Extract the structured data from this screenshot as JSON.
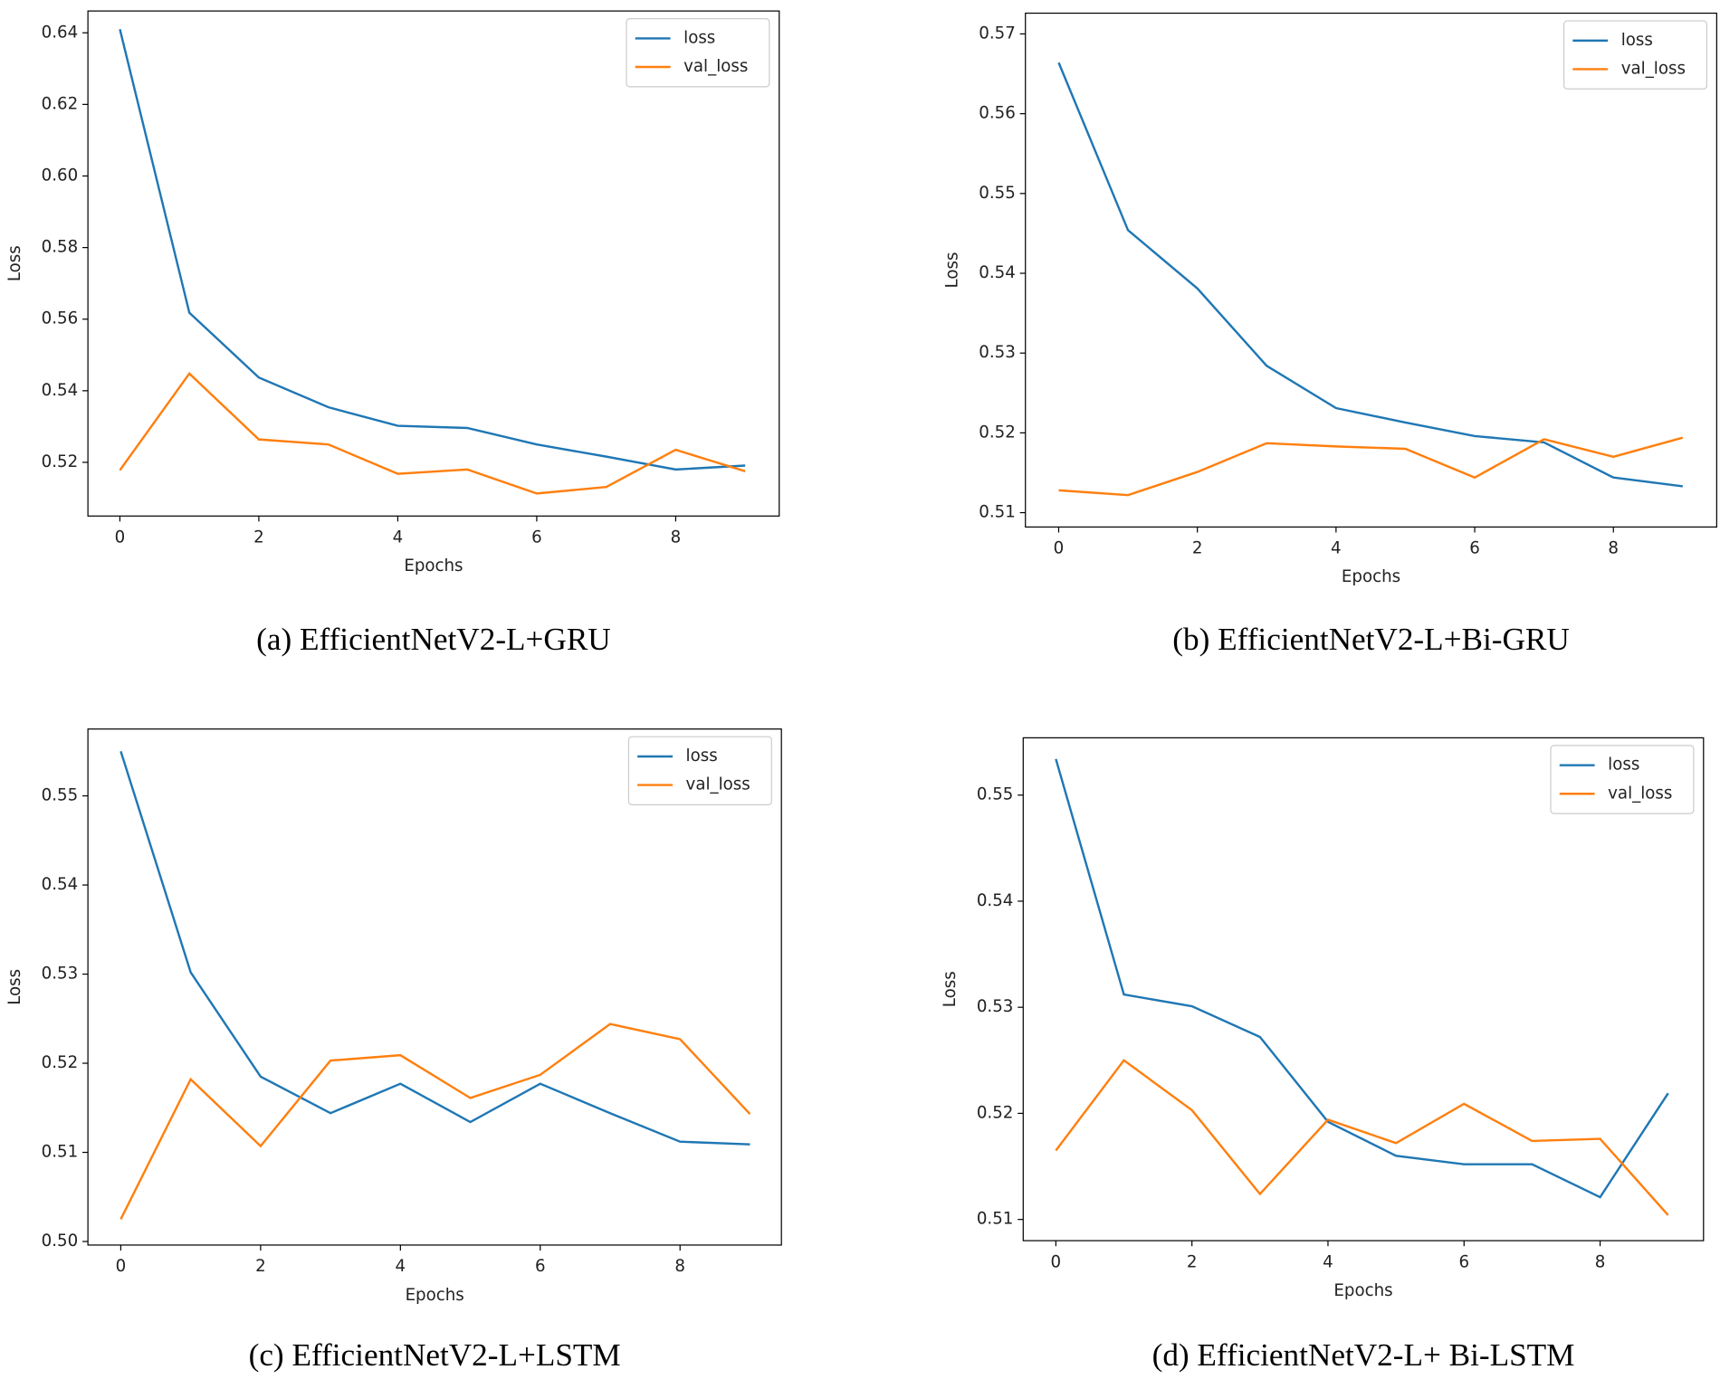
{
  "chart_data": [
    {
      "type": "line",
      "title": "(a) EfficientNetV2-L+GRU",
      "x_label": "Epochs",
      "y_label": "Loss",
      "x": [
        0,
        1,
        2,
        3,
        4,
        5,
        6,
        7,
        8,
        9
      ],
      "series": [
        {
          "name": "loss",
          "color": "#1f77b4",
          "values": [
            0.641,
            0.5618,
            0.5437,
            0.5354,
            0.5302,
            0.5296,
            0.525,
            0.5216,
            0.518,
            0.5191
          ]
        },
        {
          "name": "val_loss",
          "color": "#ff7f0e",
          "values": [
            0.5178,
            0.5448,
            0.5264,
            0.525,
            0.5168,
            0.518,
            0.5113,
            0.5131,
            0.5235,
            0.5175
          ]
        }
      ],
      "xlim": [
        -0.46,
        9.49
      ],
      "ylim": [
        0.505,
        0.6461
      ],
      "xticks": [
        0,
        2,
        4,
        6,
        8
      ],
      "yticks": [
        0.52,
        0.54,
        0.56,
        0.58,
        {
          "value": 0.6,
          "label": "0.60"
        },
        0.62,
        0.64
      ],
      "legend": "upper right"
    },
    {
      "type": "line",
      "title": "(b) EfficientNetV2-L+Bi-GRU",
      "x_label": "Epochs",
      "y_label": "Loss",
      "x": [
        0,
        1,
        2,
        3,
        4,
        5,
        6,
        7,
        8,
        9
      ],
      "series": [
        {
          "name": "loss",
          "color": "#1f77b4",
          "values": [
            0.5664,
            0.5454,
            0.5381,
            0.5284,
            0.5231,
            0.5213,
            0.5196,
            0.5188,
            0.5144,
            0.5133
          ]
        },
        {
          "name": "val_loss",
          "color": "#ff7f0e",
          "values": [
            0.5128,
            0.5122,
            0.5151,
            0.5187,
            0.5183,
            0.518,
            0.5144,
            0.5192,
            0.517,
            0.5194
          ]
        }
      ],
      "xlim": [
        -0.48,
        9.49
      ],
      "ylim": [
        0.5082,
        0.5726
      ],
      "xticks": [
        0,
        2,
        4,
        6,
        8
      ],
      "yticks": [
        0.51,
        0.52,
        0.53,
        0.54,
        0.55,
        0.56,
        0.57
      ],
      "legend": "upper right"
    },
    {
      "type": "line",
      "title": "(c) EfficientNetV2-L+LSTM",
      "x_label": "Epochs",
      "y_label": "Loss",
      "x": [
        0,
        1,
        2,
        3,
        4,
        5,
        6,
        7,
        8,
        9
      ],
      "series": [
        {
          "name": "loss",
          "color": "#1f77b4",
          "values": [
            0.555,
            0.5302,
            0.5185,
            0.5144,
            0.5177,
            0.5134,
            0.5177,
            0.5144,
            0.5112,
            0.5109
          ]
        },
        {
          "name": "val_loss",
          "color": "#ff7f0e",
          "values": [
            0.5025,
            0.5182,
            0.5107,
            0.5203,
            0.5209,
            0.5161,
            0.5187,
            0.5244,
            0.5227,
            0.5143
          ]
        }
      ],
      "xlim": [
        -0.47,
        9.45
      ],
      "ylim": [
        0.4996,
        0.5575
      ],
      "xticks": [
        0,
        2,
        4,
        6,
        8
      ],
      "yticks": [
        {
          "value": 0.5,
          "label": "0.50"
        },
        0.51,
        0.52,
        0.53,
        0.54,
        0.55
      ],
      "legend": "upper right"
    },
    {
      "type": "line",
      "title": "(d) EfficientNetV2-L+ Bi-LSTM",
      "x_label": "Epochs",
      "y_label": "Loss",
      "x": [
        0,
        1,
        2,
        3,
        4,
        5,
        6,
        7,
        8,
        9
      ],
      "series": [
        {
          "name": "loss",
          "color": "#1f77b4",
          "values": [
            0.5534,
            0.5312,
            0.5301,
            0.5272,
            0.5192,
            0.516,
            0.5152,
            0.5152,
            0.5121,
            0.5219
          ]
        },
        {
          "name": "val_loss",
          "color": "#ff7f0e",
          "values": [
            0.5165,
            0.525,
            0.5203,
            0.5124,
            0.5194,
            0.5172,
            0.5209,
            0.5174,
            0.5176,
            0.5104
          ]
        }
      ],
      "xlim": [
        -0.48,
        9.52
      ],
      "ylim": [
        0.508,
        0.5554
      ],
      "xticks": [
        0,
        2,
        4,
        6,
        8
      ],
      "yticks": [
        0.51,
        0.52,
        0.53,
        0.54,
        0.55
      ],
      "legend": "upper right"
    }
  ]
}
